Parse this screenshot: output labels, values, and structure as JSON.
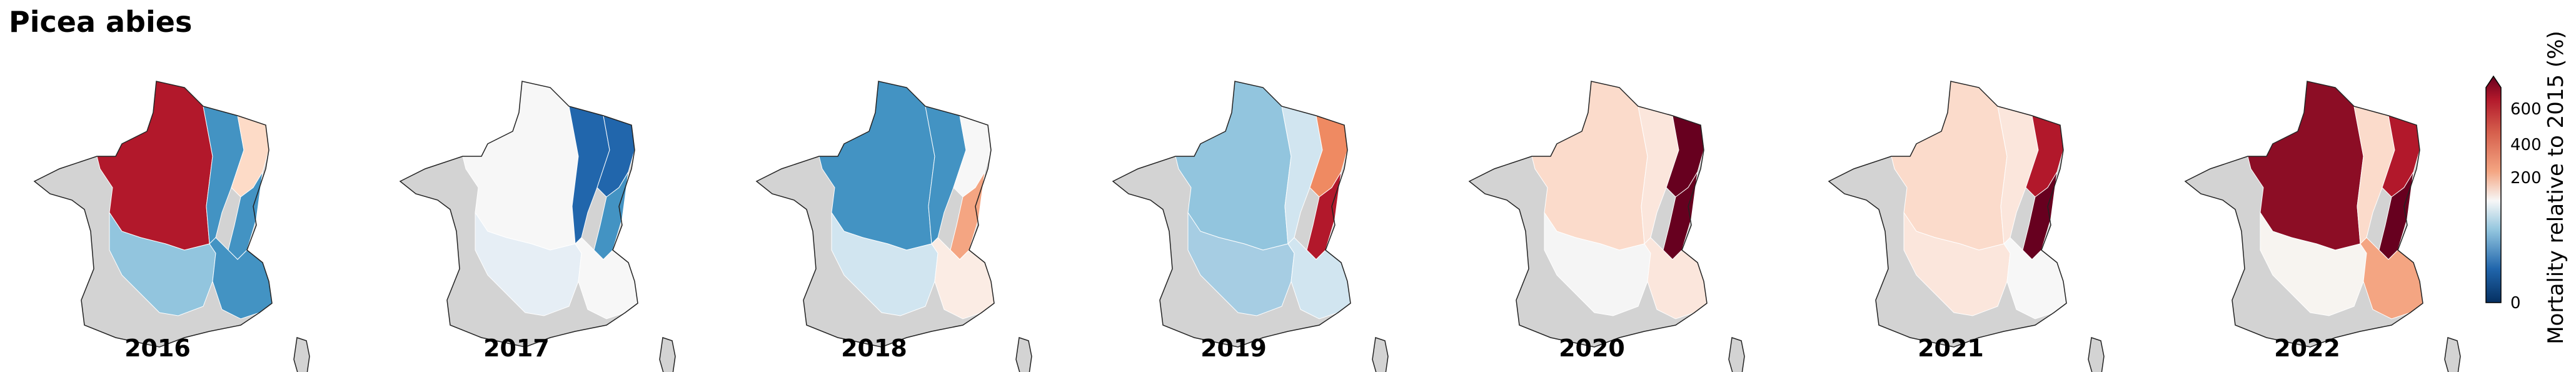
{
  "title": "Picea abies",
  "years": [
    "2016",
    "2017",
    "2018",
    "2019",
    "2020",
    "2021",
    "2022"
  ],
  "colorbar": {
    "label": "Mortality relative to 2015 (%)",
    "ticks": [
      "0",
      "200",
      "400",
      "600"
    ],
    "colormap": "RdBu_r",
    "extend": "max"
  },
  "colors": {
    "no_data": "#d3d3d3",
    "outline": "#222222"
  },
  "region_fill": {
    "north": [
      "#b2182b",
      "#f7f7f7",
      "#4393c3",
      "#92c5de",
      "#fbdbcb",
      "#fbdbcb",
      "#8c0d25"
    ],
    "northeast": [
      "#4393c3",
      "#2166ac",
      "#4393c3",
      "#d1e5f0",
      "#fbe6dc",
      "#fbe6dc",
      "#fbdbcb"
    ],
    "vosges": [
      "#fddbc7",
      "#2166ac",
      "#f7f7f7",
      "#ef8a62",
      "#67001f",
      "#b2182b",
      "#b2182b"
    ],
    "jura": [
      "#4393c3",
      "#4393c3",
      "#f4a582",
      "#b2182b",
      "#67001f",
      "#67001f",
      "#67001f"
    ],
    "central": [
      "#92c5de",
      "#e6eef5",
      "#d1e5f0",
      "#a6cde3",
      "#f5f5f5",
      "#fbe6dc",
      "#f7f4f0"
    ],
    "alps": [
      "#4393c3",
      "#f7f7f7",
      "#fbece4",
      "#d1e5f0",
      "#fbe6dc",
      "#f7f7f7",
      "#f4a582"
    ]
  }
}
